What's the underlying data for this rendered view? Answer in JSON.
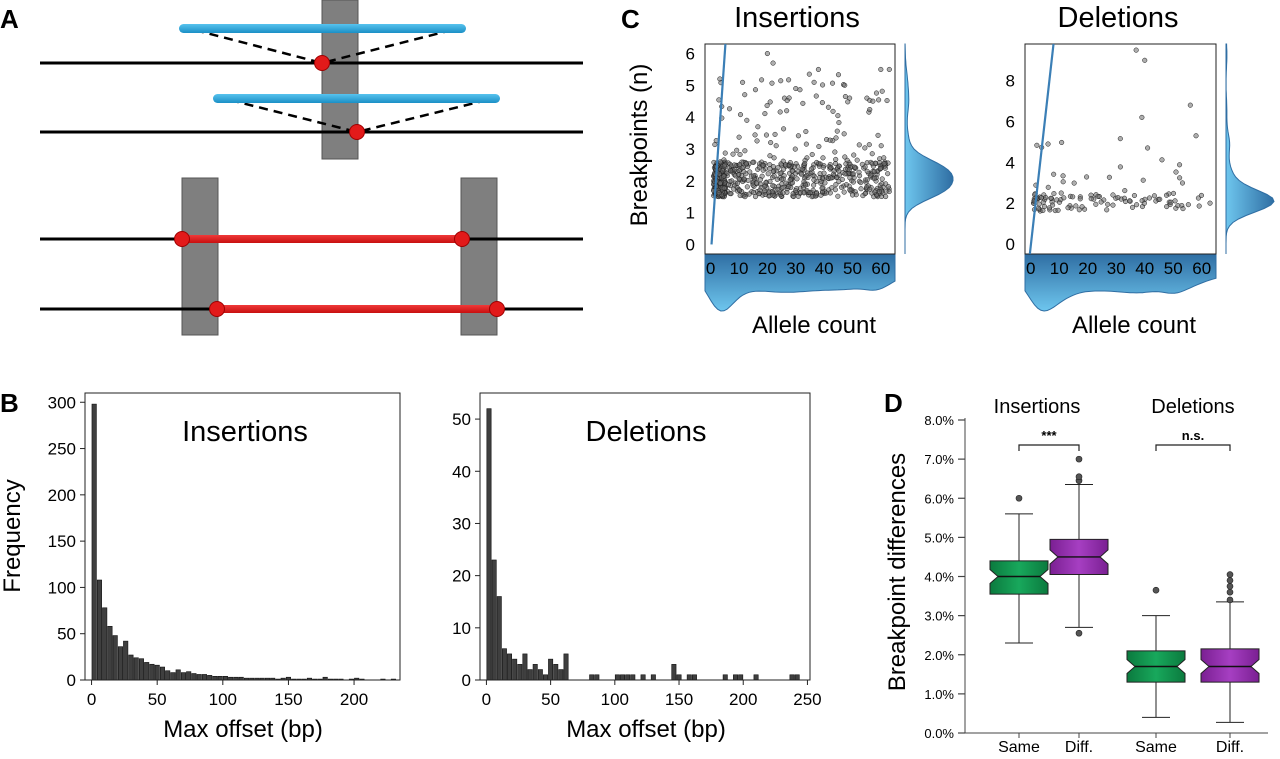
{
  "panels": {
    "A": "A",
    "B": "B",
    "C": "C",
    "D": "D"
  },
  "colors": {
    "blue": "#29a8d8",
    "red": "#e21a1a",
    "grey": "#7f7f7f",
    "black": "#000000",
    "regline": "#3b7fb6",
    "density_dark": "#2f6ea3",
    "density_light": "#6ec6ee",
    "box_green": "#0f8c4a",
    "box_purple": "#8e2aa6"
  },
  "chart_data": [
    {
      "type": "bar",
      "panel": "B-left",
      "title": "Insertions",
      "xlabel": "Max offset (bp)",
      "ylabel": "Frequency",
      "xlim": [
        -5,
        235
      ],
      "ylim": [
        0,
        310
      ],
      "xticks": [
        "0",
        "50",
        "100",
        "150",
        "200"
      ],
      "yticks": [
        "0",
        "50",
        "100",
        "150",
        "200",
        "250",
        "300"
      ],
      "bin_width": 4,
      "bin_starts": [
        0,
        4,
        8,
        12,
        16,
        20,
        24,
        28,
        32,
        36,
        40,
        44,
        48,
        52,
        56,
        60,
        64,
        68,
        72,
        76,
        80,
        84,
        88,
        92,
        96,
        100,
        104,
        108,
        112,
        116,
        120,
        124,
        128,
        132,
        136,
        140,
        144,
        148,
        152,
        156,
        160,
        164,
        168,
        172,
        176,
        180,
        184,
        188,
        192,
        196,
        200,
        204,
        208,
        212,
        216,
        220,
        224,
        228
      ],
      "values": [
        298,
        108,
        78,
        58,
        48,
        36,
        42,
        27,
        24,
        23,
        19,
        17,
        16,
        14,
        10,
        8,
        11,
        8,
        9,
        7,
        6,
        6,
        5,
        4,
        4,
        4,
        3,
        3,
        3,
        2,
        2,
        2,
        2,
        2,
        2,
        1,
        2,
        3,
        1,
        1,
        1,
        2,
        1,
        1,
        3,
        1,
        1,
        1,
        0,
        1,
        2,
        1,
        0,
        0,
        0,
        1,
        0,
        1
      ]
    },
    {
      "type": "bar",
      "panel": "B-right",
      "title": "Deletions",
      "xlabel": "Max offset (bp)",
      "ylabel": "",
      "xlim": [
        -5,
        252
      ],
      "ylim": [
        0,
        55
      ],
      "xticks": [
        "0",
        "50",
        "100",
        "150",
        "200",
        "250"
      ],
      "yticks": [
        "0",
        "10",
        "20",
        "30",
        "40",
        "50"
      ],
      "bin_width": 4,
      "bin_starts": [
        0,
        4,
        8,
        12,
        16,
        20,
        24,
        28,
        32,
        36,
        40,
        44,
        48,
        52,
        56,
        60,
        64,
        68,
        72,
        76,
        80,
        84,
        88,
        92,
        96,
        100,
        104,
        108,
        112,
        116,
        120,
        124,
        128,
        132,
        136,
        140,
        144,
        148,
        152,
        156,
        160,
        164,
        168,
        172,
        176,
        180,
        184,
        188,
        192,
        196,
        200,
        204,
        208,
        212,
        216,
        220,
        224,
        228,
        232,
        236,
        240,
        244
      ],
      "values": [
        52,
        23,
        16,
        6,
        5,
        4,
        3,
        5,
        2,
        3,
        2,
        1,
        4,
        3,
        2,
        5,
        0,
        0,
        0,
        0,
        1,
        1,
        0,
        0,
        0,
        1,
        1,
        1,
        1,
        0,
        1,
        0,
        1,
        0,
        0,
        0,
        3,
        1,
        0,
        1,
        1,
        0,
        0,
        0,
        0,
        0,
        1,
        0,
        1,
        1,
        0,
        0,
        1,
        0,
        0,
        0,
        0,
        0,
        0,
        1,
        1,
        0
      ]
    },
    {
      "type": "scatter",
      "panel": "C-left",
      "title": "Insertions",
      "xlabel": "Allele count",
      "ylabel": "Breakpoints (n)",
      "xlim": [
        -2,
        65
      ],
      "ylim": [
        -0.3,
        6.3
      ],
      "xticks": [
        "0",
        "10",
        "20",
        "30",
        "40",
        "50",
        "60"
      ],
      "yticks": [
        "0",
        "1",
        "2",
        "3",
        "4",
        "5",
        "6"
      ],
      "n_points": 700,
      "core_y_range": [
        1.5,
        2.6
      ],
      "regression_line": {
        "x": [
          0.3,
          5.2
        ],
        "y": [
          0,
          6.3
        ]
      },
      "notable_points": [
        [
          20,
          6.0
        ],
        [
          22,
          5.7
        ],
        [
          60,
          5.5
        ],
        [
          63,
          5.5
        ],
        [
          30,
          4.9
        ],
        [
          38,
          5.5
        ],
        [
          49,
          4.6
        ]
      ]
    },
    {
      "type": "scatter",
      "panel": "C-right",
      "title": "Deletions",
      "xlabel": "Allele count",
      "ylabel": "",
      "xlim": [
        -2,
        65
      ],
      "ylim": [
        -0.5,
        9.8
      ],
      "xticks": [
        "0",
        "10",
        "20",
        "30",
        "40",
        "50",
        "60"
      ],
      "yticks": [
        "0",
        "2",
        "4",
        "6",
        "8"
      ],
      "n_points": 120,
      "core_y_range": [
        1.6,
        2.5
      ],
      "regression_line": {
        "x": [
          -0.3,
          8.0
        ],
        "y": [
          -0.5,
          9.8
        ]
      },
      "notable_points": [
        [
          37,
          9.5
        ],
        [
          40,
          9.0
        ],
        [
          39,
          6.2
        ],
        [
          56,
          6.8
        ],
        [
          58,
          5.3
        ],
        [
          41,
          4.7
        ]
      ]
    },
    {
      "type": "box",
      "panel": "D",
      "ylabel": "Breakpoint differences",
      "ylim": [
        0.0,
        8.0
      ],
      "yticks": [
        "0.0%",
        "1.0%",
        "2.0%",
        "3.0%",
        "4.0%",
        "5.0%",
        "6.0%",
        "7.0%",
        "8.0%"
      ],
      "groups": [
        {
          "name": "Insertions",
          "significance": "***",
          "boxes": [
            {
              "label": "Same",
              "min": 2.3,
              "q1": 3.55,
              "median": 4.0,
              "q3": 4.4,
              "max": 5.6,
              "outliers": [
                6.0
              ],
              "color": "green"
            },
            {
              "label": "Diff.",
              "min": 2.7,
              "q1": 4.05,
              "median": 4.5,
              "q3": 4.95,
              "max": 6.35,
              "outliers": [
                6.45,
                6.55,
                7.0,
                2.55
              ],
              "color": "purple"
            }
          ]
        },
        {
          "name": "Deletions",
          "significance": "n.s.",
          "boxes": [
            {
              "label": "Same",
              "min": 0.4,
              "q1": 1.3,
              "median": 1.7,
              "q3": 2.1,
              "max": 3.0,
              "outliers": [
                3.65
              ],
              "color": "green"
            },
            {
              "label": "Diff.",
              "min": 0.27,
              "q1": 1.3,
              "median": 1.7,
              "q3": 2.15,
              "max": 3.35,
              "outliers": [
                3.4,
                3.6,
                3.75,
                3.9,
                4.05
              ],
              "color": "purple"
            }
          ]
        }
      ]
    }
  ]
}
